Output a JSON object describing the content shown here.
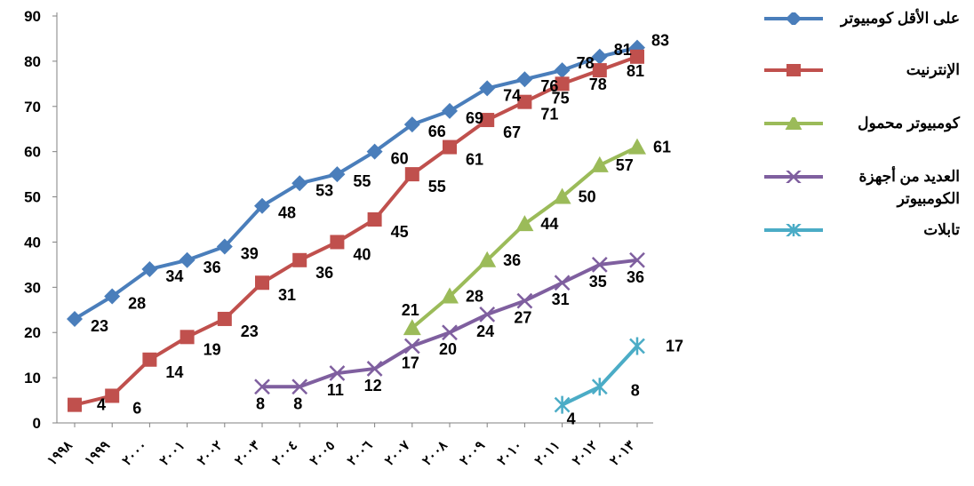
{
  "chart_data": {
    "type": "line",
    "categories": [
      "١٩٩٨",
      "١٩٩٩",
      "٢٠٠٠",
      "٢٠٠١",
      "٢٠٠٢",
      "٢٠٠٣",
      "٢٠٠٤",
      "٢٠٠٥",
      "٢٠٠٦",
      "٢٠٠٧",
      "٢٠٠٨",
      "٢٠٠٩",
      "٢٠١٠",
      "٢٠١١",
      "٢٠١٢",
      "٢٠١٣"
    ],
    "ylim": [
      0,
      90
    ],
    "yticks": [
      "0",
      "10",
      "20",
      "30",
      "40",
      "50",
      "60",
      "70",
      "80",
      "90"
    ],
    "grid": false,
    "legend_position": "right",
    "series": [
      {
        "name": "على الأقل كومبيوتر",
        "color": "#4A7EBB",
        "marker": "diamond",
        "values": [
          23,
          28,
          34,
          36,
          39,
          48,
          53,
          55,
          60,
          66,
          69,
          74,
          76,
          78,
          81,
          83
        ],
        "labels": [
          "23",
          "28",
          "34",
          "36",
          "39",
          "48",
          "53",
          "55",
          "60",
          "66",
          "69",
          "74",
          "76",
          "78",
          "81",
          "83"
        ]
      },
      {
        "name": "الإنترنيت",
        "color": "#C0504D",
        "marker": "square",
        "values": [
          4,
          6,
          14,
          19,
          23,
          31,
          36,
          40,
          45,
          55,
          61,
          67,
          71,
          75,
          78,
          81
        ],
        "labels": [
          "4",
          "6",
          "14",
          "19",
          "23",
          "31",
          "36",
          "40",
          "45",
          "55",
          "61",
          "67",
          "71",
          "75",
          "78",
          "81"
        ]
      },
      {
        "name": "كومبيوتر محمول",
        "color": "#9BBB59",
        "marker": "triangle",
        "values": [
          null,
          null,
          null,
          null,
          null,
          null,
          null,
          null,
          null,
          21,
          28,
          36,
          44,
          50,
          57,
          61
        ],
        "labels": [
          null,
          null,
          null,
          null,
          null,
          null,
          null,
          null,
          null,
          "21",
          "28",
          "36",
          "44",
          "50",
          "57",
          "61"
        ]
      },
      {
        "name": "العديد من أجهزة الكومبيوتر",
        "color": "#7F5F9F",
        "marker": "x",
        "values": [
          null,
          null,
          null,
          null,
          null,
          8,
          8,
          11,
          12,
          17,
          20,
          24,
          27,
          31,
          35,
          36
        ],
        "labels": [
          null,
          null,
          null,
          null,
          null,
          "8",
          "8",
          "11",
          "12",
          "17",
          "20",
          "24",
          "27",
          "31",
          "35",
          "36"
        ]
      },
      {
        "name": "تابلات",
        "color": "#4BACC6",
        "marker": "star",
        "values": [
          null,
          null,
          null,
          null,
          null,
          null,
          null,
          null,
          null,
          null,
          null,
          null,
          null,
          4,
          8,
          17
        ],
        "labels": [
          null,
          null,
          null,
          null,
          null,
          null,
          null,
          null,
          null,
          null,
          null,
          null,
          null,
          "4",
          "8",
          "17"
        ]
      }
    ]
  }
}
